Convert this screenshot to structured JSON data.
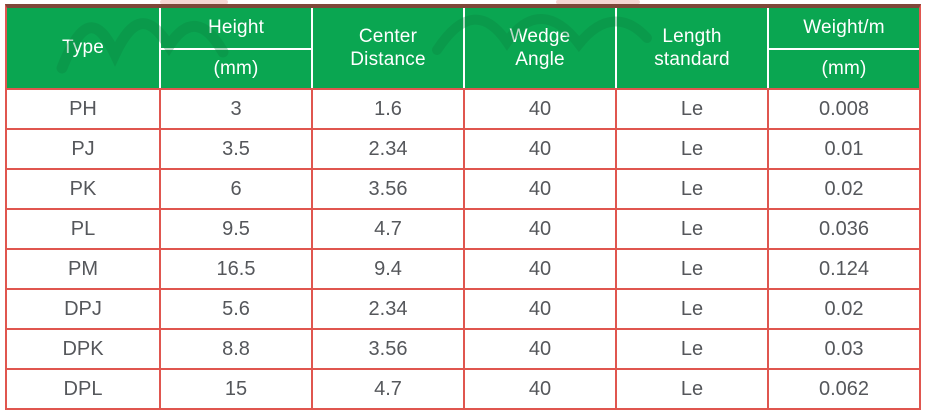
{
  "table": {
    "columns": [
      "type",
      "height",
      "center_distance",
      "wedge_angle",
      "length_standard",
      "weight"
    ],
    "header": {
      "type": "Type",
      "height": "Height",
      "height_unit": "(mm)",
      "center_distance": "Center\nDistance",
      "wedge_angle": "Wedge\nAngle",
      "length_standard": "Length\nstandard",
      "weight": "Weight/m",
      "weight_unit": "(mm)"
    },
    "rows": [
      {
        "type": "PH",
        "height": "3",
        "center_distance": "1.6",
        "wedge_angle": "40",
        "length_standard": "Le",
        "weight": "0.008"
      },
      {
        "type": "PJ",
        "height": "3.5",
        "center_distance": "2.34",
        "wedge_angle": "40",
        "length_standard": "Le",
        "weight": "0.01"
      },
      {
        "type": "PK",
        "height": "6",
        "center_distance": "3.56",
        "wedge_angle": "40",
        "length_standard": "Le",
        "weight": "0.02"
      },
      {
        "type": "PL",
        "height": "9.5",
        "center_distance": "4.7",
        "wedge_angle": "40",
        "length_standard": "Le",
        "weight": "0.036"
      },
      {
        "type": "PM",
        "height": "16.5",
        "center_distance": "9.4",
        "wedge_angle": "40",
        "length_standard": "Le",
        "weight": "0.124"
      },
      {
        "type": "DPJ",
        "height": "5.6",
        "center_distance": "2.34",
        "wedge_angle": "40",
        "length_standard": "Le",
        "weight": "0.02"
      },
      {
        "type": "DPK",
        "height": "8.8",
        "center_distance": "3.56",
        "wedge_angle": "40",
        "length_standard": "Le",
        "weight": "0.03"
      },
      {
        "type": "DPL",
        "height": "15",
        "center_distance": "4.7",
        "wedge_angle": "40",
        "length_standard": "Le",
        "weight": "0.062"
      }
    ]
  },
  "colors": {
    "header_bg": "#0aa651",
    "border": "#e0564f",
    "top_border": "#7e4739",
    "body_text": "#55575b",
    "header_text": "#ffffff"
  }
}
